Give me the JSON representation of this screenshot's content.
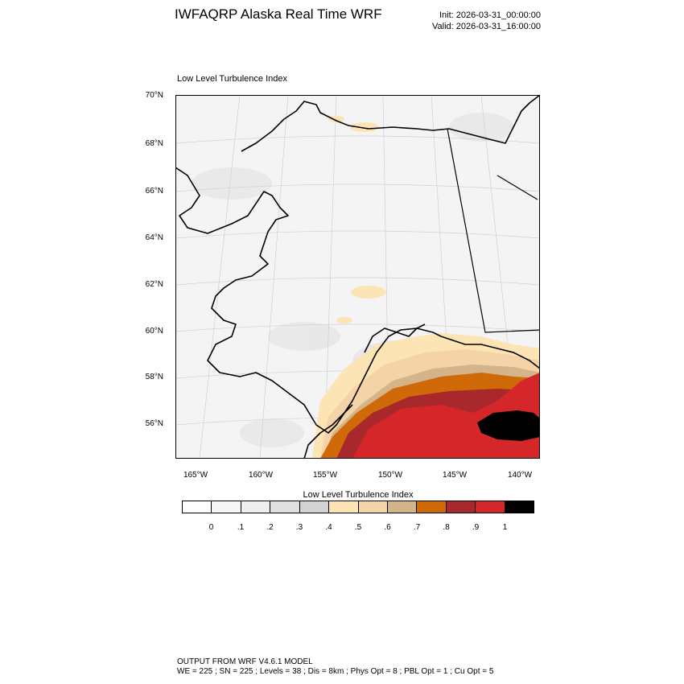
{
  "header": {
    "title": "IWFAQRP Alaska Real Time WRF",
    "init": "Init: 2026-03-31_00:00:00",
    "valid": "Valid: 2026-03-31_16:00:00"
  },
  "panel": {
    "title": "Low Level Turbulence Index"
  },
  "map": {
    "lat_labels": [
      "70°N",
      "68°N",
      "66°N",
      "64°N",
      "62°N",
      "60°N",
      "58°N",
      "56°N"
    ],
    "lon_labels": [
      "165°W",
      "160°W",
      "155°W",
      "150°W",
      "145°W",
      "140°W"
    ],
    "colors": {
      "background": "#f4f4f4",
      "coast": "#000000",
      "graticule": "#d0d0d0"
    }
  },
  "colorbar": {
    "title": "Low Level Turbulence Index",
    "colors": [
      "#ffffff",
      "#f7f7f7",
      "#efefef",
      "#e0e0e0",
      "#d2d2d2",
      "#fde4b5",
      "#f4d3a7",
      "#d4b48a",
      "#d06a08",
      "#a9282b",
      "#d52729",
      "#000000"
    ],
    "labels": [
      "0",
      ".1",
      ".2",
      ".3",
      ".4",
      ".5",
      ".6",
      ".7",
      ".8",
      ".9",
      "1"
    ]
  },
  "footer": {
    "line1": "OUTPUT FROM WRF V4.6.1 MODEL",
    "line2": "WE = 225 ; SN = 225 ; Levels = 38 ; Dis = 8km ; Phys Opt = 8 ; PBL Opt = 1 ; Cu Opt = 5"
  }
}
